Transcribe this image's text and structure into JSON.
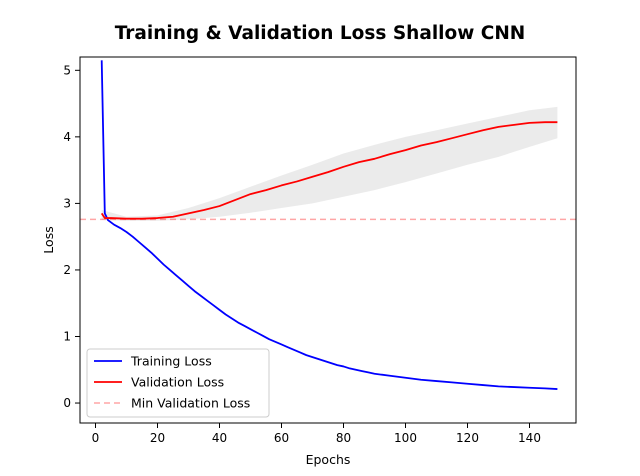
{
  "chart_data": {
    "type": "line",
    "title": "Training & Validation Loss Shallow CNN",
    "xlabel": "Epochs",
    "ylabel": "Loss",
    "xlim": [
      -5,
      155
    ],
    "ylim": [
      -0.3,
      5.2
    ],
    "xticks": [
      0,
      20,
      40,
      60,
      80,
      100,
      120,
      140
    ],
    "yticks": [
      0,
      1,
      2,
      3,
      4,
      5
    ],
    "grid": false,
    "legend_position": "lower-left",
    "series": [
      {
        "name": "Training Loss",
        "color": "#0000ff",
        "x": [
          2,
          3,
          4,
          6,
          8,
          10,
          12,
          14,
          16,
          18,
          20,
          22,
          24,
          26,
          28,
          30,
          32,
          34,
          36,
          38,
          40,
          42,
          44,
          46,
          48,
          50,
          52,
          54,
          56,
          58,
          60,
          62,
          64,
          66,
          68,
          70,
          72,
          74,
          76,
          78,
          80,
          82,
          84,
          86,
          88,
          90,
          95,
          100,
          105,
          110,
          115,
          120,
          125,
          130,
          135,
          140,
          145,
          149
        ],
        "y": [
          5.15,
          2.85,
          2.75,
          2.68,
          2.63,
          2.57,
          2.5,
          2.42,
          2.34,
          2.26,
          2.17,
          2.08,
          2.0,
          1.92,
          1.84,
          1.76,
          1.68,
          1.61,
          1.54,
          1.47,
          1.4,
          1.33,
          1.27,
          1.21,
          1.16,
          1.11,
          1.06,
          1.01,
          0.96,
          0.92,
          0.88,
          0.84,
          0.8,
          0.76,
          0.72,
          0.69,
          0.66,
          0.63,
          0.6,
          0.57,
          0.55,
          0.52,
          0.5,
          0.48,
          0.46,
          0.44,
          0.41,
          0.38,
          0.35,
          0.33,
          0.31,
          0.29,
          0.27,
          0.25,
          0.24,
          0.23,
          0.22,
          0.21
        ]
      },
      {
        "name": "Validation Loss",
        "color": "#ff0000",
        "x": [
          2,
          3,
          5,
          10,
          15,
          20,
          25,
          30,
          35,
          40,
          45,
          50,
          55,
          60,
          65,
          70,
          75,
          80,
          85,
          90,
          95,
          100,
          105,
          110,
          115,
          120,
          125,
          130,
          135,
          140,
          145,
          149
        ],
        "y": [
          2.85,
          2.78,
          2.78,
          2.77,
          2.77,
          2.78,
          2.8,
          2.85,
          2.9,
          2.96,
          3.05,
          3.14,
          3.2,
          3.27,
          3.33,
          3.4,
          3.47,
          3.55,
          3.62,
          3.67,
          3.74,
          3.8,
          3.87,
          3.92,
          3.98,
          4.04,
          4.1,
          4.15,
          4.18,
          4.21,
          4.22,
          4.22
        ]
      }
    ],
    "band": {
      "x": [
        2,
        10,
        20,
        30,
        40,
        50,
        60,
        70,
        80,
        90,
        100,
        110,
        120,
        130,
        140,
        149
      ],
      "lower": [
        2.75,
        2.74,
        2.74,
        2.76,
        2.8,
        2.86,
        2.93,
        3.0,
        3.1,
        3.2,
        3.32,
        3.45,
        3.58,
        3.7,
        3.85,
        3.98
      ],
      "upper": [
        2.9,
        2.8,
        2.82,
        2.93,
        3.08,
        3.25,
        3.42,
        3.58,
        3.75,
        3.88,
        4.0,
        4.1,
        4.2,
        4.3,
        4.4,
        4.45
      ],
      "color": "#d3d3d3"
    },
    "reference_line": {
      "name": "Min Validation Loss",
      "y": 2.76,
      "color": "#ff0000",
      "style": "dashed",
      "opacity": 0.35
    }
  }
}
